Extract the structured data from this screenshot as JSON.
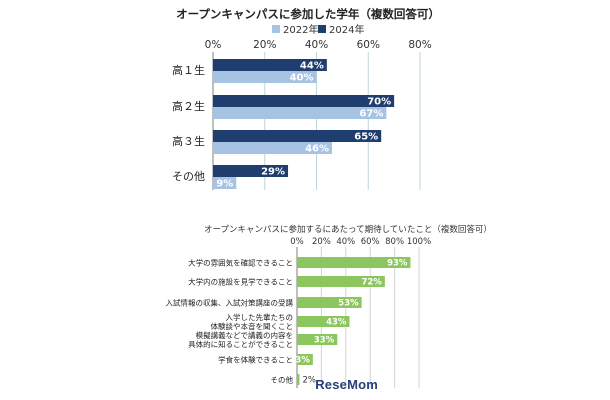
{
  "chart_data": [
    {
      "type": "bar",
      "orientation": "horizontal",
      "title": "オープンキャンパスに参加した学年（複数回答可）",
      "categories": [
        "高１生",
        "高２生",
        "高３生",
        "その他"
      ],
      "series": [
        {
          "name": "2024年",
          "values": [
            44,
            70,
            65,
            29
          ],
          "value_labels": [
            "44%",
            "70%",
            "65%",
            "29%"
          ],
          "color": "#1f3d6e"
        },
        {
          "name": "2022年",
          "values": [
            40,
            67,
            46,
            9
          ],
          "value_labels": [
            "40%",
            "67%",
            "46%",
            "9%"
          ],
          "color": "#a7c3e3"
        }
      ],
      "legend_order": [
        "2022年",
        "2024年"
      ],
      "legend_position": "top",
      "xaxis_position": "top",
      "xlim": [
        0,
        80
      ],
      "xticks": [
        "0%",
        "20%",
        "40%",
        "60%",
        "80%"
      ],
      "grid": true
    },
    {
      "type": "bar",
      "orientation": "horizontal",
      "title": "オープンキャンパスに参加するにあたって期待していたこと（複数回答可）",
      "categories": [
        [
          "大学の雰囲気を確認できること"
        ],
        [
          "大学内の施設を見学できること"
        ],
        [
          "入試情報の収集、入試対策講座の受講"
        ],
        [
          "入学した先輩たちの",
          "体験談や本音を聞くこと"
        ],
        [
          "模擬講義などで講義の内容を",
          "具体的に知ることができること"
        ],
        [
          "学食を体験できること"
        ],
        [
          "その他"
        ]
      ],
      "values": [
        93,
        72,
        53,
        43,
        33,
        13,
        2
      ],
      "value_labels": [
        "93%",
        "72%",
        "53%",
        "43%",
        "33%",
        "13%",
        "2%"
      ],
      "color": "#8cc65e",
      "xaxis_position": "top",
      "xlim": [
        0,
        100
      ],
      "xticks": [
        "0%",
        "20%",
        "40%",
        "60%",
        "80%",
        "100%"
      ],
      "grid": true
    }
  ],
  "watermark": {
    "text": "ReseMom"
  }
}
